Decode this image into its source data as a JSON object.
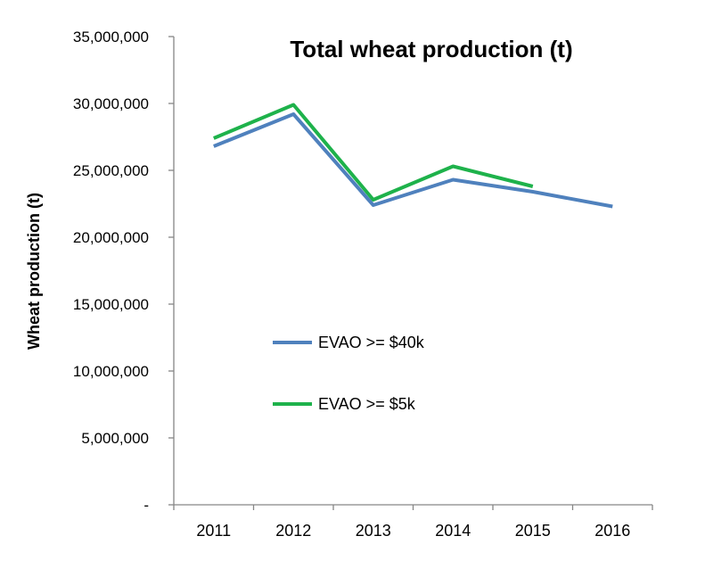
{
  "chart_data": {
    "type": "line",
    "title": "Total wheat production (t)",
    "xlabel": "",
    "ylabel": "Wheat production (t)",
    "categories": [
      "2011",
      "2012",
      "2013",
      "2014",
      "2015",
      "2016"
    ],
    "ylim": [
      0,
      35000000
    ],
    "yticks": [
      {
        "value": 0,
        "label": "-"
      },
      {
        "value": 5000000,
        "label": "5,000,000"
      },
      {
        "value": 10000000,
        "label": "10,000,000"
      },
      {
        "value": 15000000,
        "label": "15,000,000"
      },
      {
        "value": 20000000,
        "label": "20,000,000"
      },
      {
        "value": 25000000,
        "label": "25,000,000"
      },
      {
        "value": 30000000,
        "label": "30,000,000"
      },
      {
        "value": 35000000,
        "label": "35,000,000"
      }
    ],
    "grid": false,
    "legend_position": "center-left",
    "series": [
      {
        "name": "EVAO >= $40k",
        "color": "#4f81bd",
        "values": [
          26800000,
          29200000,
          22400000,
          24300000,
          23400000,
          22300000
        ]
      },
      {
        "name": "EVAO >= $5k",
        "color": "#1eb24b",
        "values": [
          27400000,
          29900000,
          22800000,
          25300000,
          23800000,
          null
        ]
      }
    ]
  }
}
